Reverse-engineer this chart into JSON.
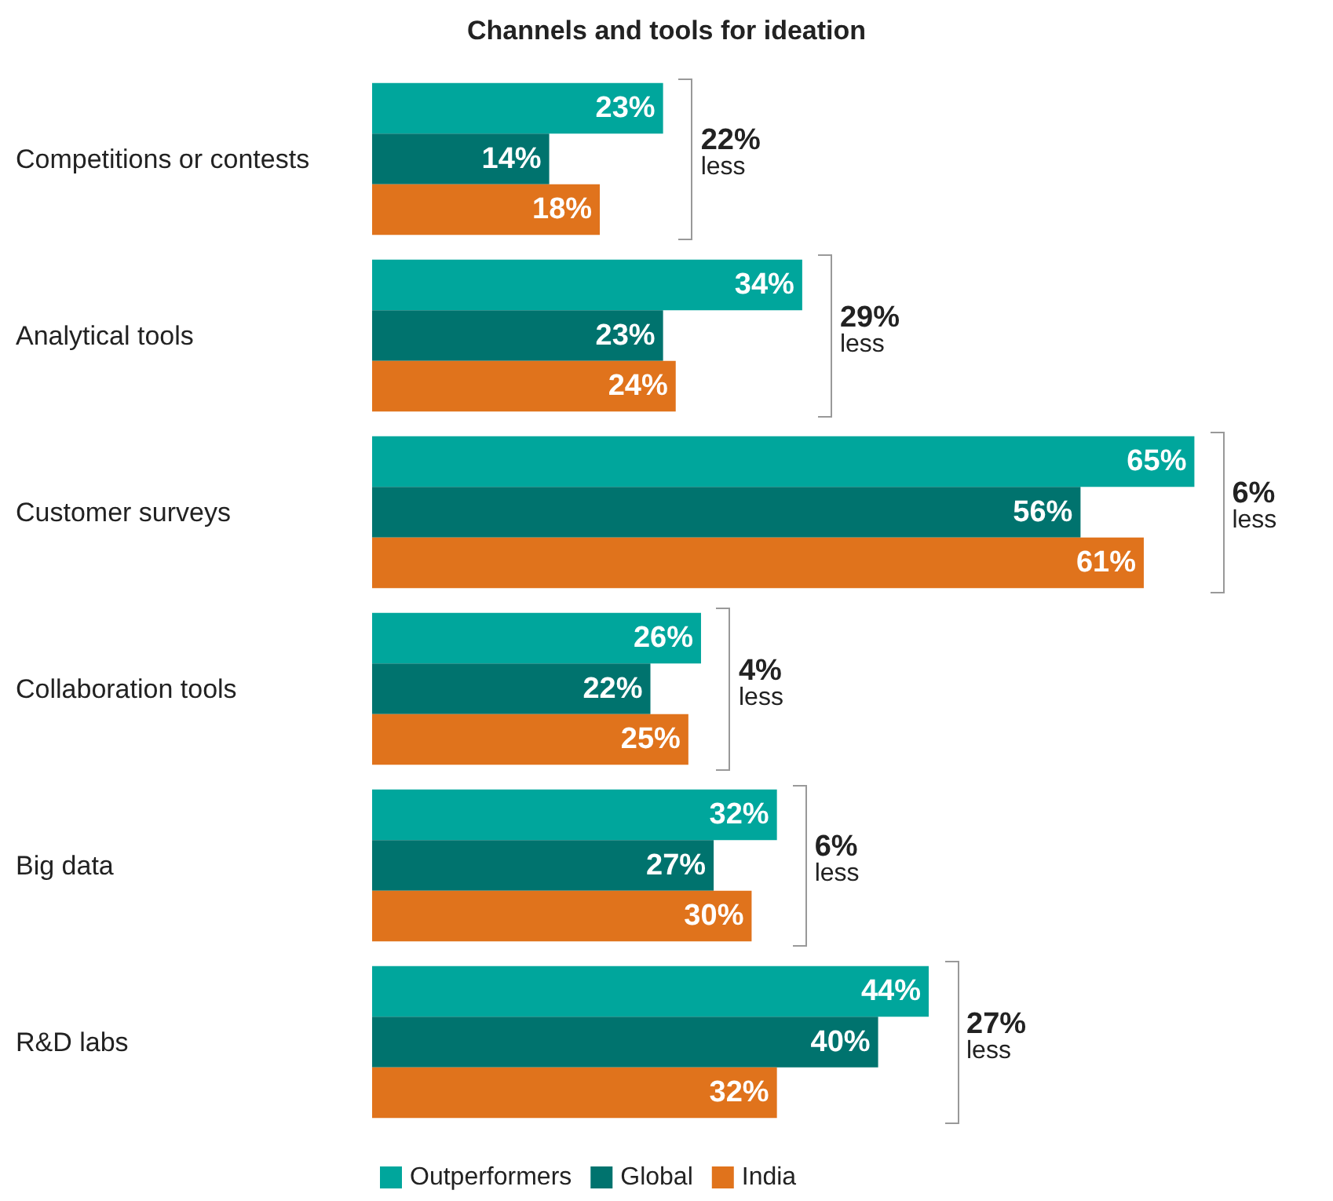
{
  "chart_data": {
    "type": "bar",
    "orientation": "horizontal",
    "title": "Channels and tools for ideation",
    "categories": [
      "Competitions or contests",
      "Analytical tools",
      "Customer surveys",
      "Collaboration tools",
      "Big data",
      "R&D labs"
    ],
    "series": [
      {
        "name": "Outperformers",
        "color": "#00a69c",
        "values": [
          23,
          34,
          65,
          26,
          32,
          44
        ],
        "value_labels": [
          "23%",
          "34%",
          "65%",
          "26%",
          "32%",
          "44%"
        ]
      },
      {
        "name": "Global",
        "color": "#00736e",
        "values": [
          14,
          23,
          56,
          22,
          27,
          40
        ],
        "value_labels": [
          "14%",
          "23%",
          "56%",
          "22%",
          "27%",
          "40%"
        ]
      },
      {
        "name": "India",
        "color": "#e0731c",
        "values": [
          18,
          24,
          61,
          25,
          30,
          32
        ],
        "value_labels": [
          "18%",
          "24%",
          "61%",
          "25%",
          "30%",
          "32%"
        ]
      }
    ],
    "legend": "bottom",
    "annotations": [
      "22% less",
      "29% less",
      "6% less",
      "4% less",
      "6% less",
      "27% less"
    ]
  }
}
